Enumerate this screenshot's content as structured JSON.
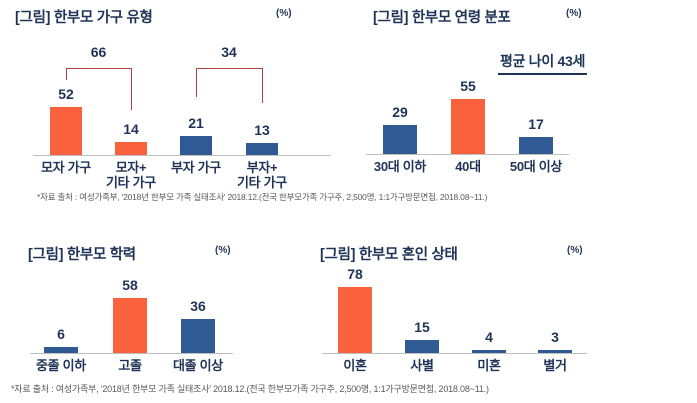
{
  "colors": {
    "orange": "#f9623d",
    "blue": "#2f5a93",
    "navy_text": "#1f3356",
    "bracket_red": "#b0423f",
    "axis_gray": "#bfbfbf",
    "note_gray": "#5a5a5a"
  },
  "source_note": "*자료 출처 : 여성가족부, '2018년 한부모 가족 실태조사' 2018.12.(전국 한부모가족 가구주, 2,500명, 1:1가구방문면접, 2018.08~11.)",
  "chart_data": [
    {
      "id": "household-type",
      "type": "bar",
      "title": "[그림] 한부모 가구 유형",
      "unit": "(%)",
      "categories": [
        "모자 가구",
        "모자+\n기타 가구",
        "부자 가구",
        "부자+\n기타 가구"
      ],
      "values": [
        52,
        14,
        21,
        13
      ],
      "bar_colors": [
        "orange",
        "orange",
        "blue",
        "blue"
      ],
      "group_brackets": [
        {
          "label": "66",
          "from": 0,
          "to": 1
        },
        {
          "label": "34",
          "from": 2,
          "to": 3
        }
      ],
      "ylim": [
        0,
        60
      ],
      "grid": false,
      "legend": false
    },
    {
      "id": "age-distribution",
      "type": "bar",
      "title": "[그림] 한부모 연령 분포",
      "unit": "(%)",
      "annotation": "평균 나이 43세",
      "categories": [
        "30대 이하",
        "40대",
        "50대 이상"
      ],
      "values": [
        29,
        55,
        17
      ],
      "bar_colors": [
        "blue",
        "orange",
        "blue"
      ],
      "ylim": [
        0,
        60
      ],
      "grid": false,
      "legend": false
    },
    {
      "id": "education",
      "type": "bar",
      "title": "[그림] 한부모 학력",
      "unit": "(%)",
      "categories": [
        "중졸 이하",
        "고졸",
        "대졸 이상"
      ],
      "values": [
        6,
        58,
        36
      ],
      "bar_colors": [
        "blue",
        "orange",
        "blue"
      ],
      "ylim": [
        0,
        60
      ],
      "grid": false,
      "legend": false
    },
    {
      "id": "marital-status",
      "type": "bar",
      "title": "[그림] 한부모 혼인 상태",
      "unit": "(%)",
      "categories": [
        "이혼",
        "사별",
        "미혼",
        "별거"
      ],
      "values": [
        78,
        15,
        4,
        3
      ],
      "bar_colors": [
        "orange",
        "blue",
        "blue",
        "blue"
      ],
      "ylim": [
        0,
        85
      ],
      "grid": false,
      "legend": false
    }
  ]
}
